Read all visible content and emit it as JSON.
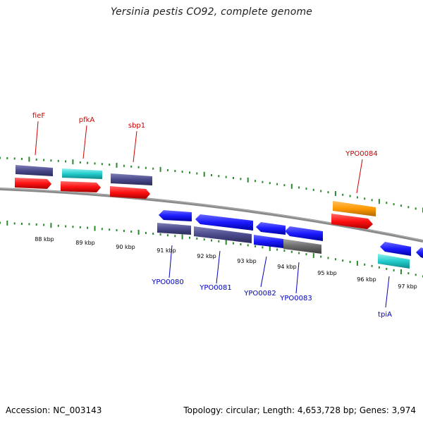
{
  "title": "Yersinia pestis CO92, complete genome",
  "footer": {
    "accession": "Accession: NC_003143",
    "summary": "Topology: circular; Length: 4,653,728 bp; Genes: 3,974"
  },
  "colors": {
    "forward_label": "#cc0000",
    "reverse_label": "#0000bb",
    "backbone": "#888888",
    "tick": "#2a8a2a",
    "cds_red": "#ff1111",
    "cds_blue": "#1a1aff",
    "cds_slate": "#4a4a8c",
    "cds_cyan": "#22cccc",
    "cds_orange": "#ff9900",
    "cds_gray": "#6a6a6a"
  },
  "scale": {
    "ticks": [
      {
        "label": "88 kbp"
      },
      {
        "label": "89 kbp"
      },
      {
        "label": "90 kbp"
      },
      {
        "label": "91 kbp"
      },
      {
        "label": "92 kbp"
      },
      {
        "label": "93 kbp"
      },
      {
        "label": "94 kbp"
      },
      {
        "label": "95 kbp"
      },
      {
        "label": "96 kbp"
      },
      {
        "label": "97 kbp"
      }
    ]
  },
  "labels": {
    "fieF": "fieF",
    "pfkA": "pfkA",
    "sbp1": "sbp1",
    "ypo0084": "YPO0084",
    "ypo0080": "YPO0080",
    "ypo0081": "YPO0081",
    "ypo0082": "YPO0082",
    "ypo0083": "YPO0083",
    "tpiA": "tpiA"
  }
}
